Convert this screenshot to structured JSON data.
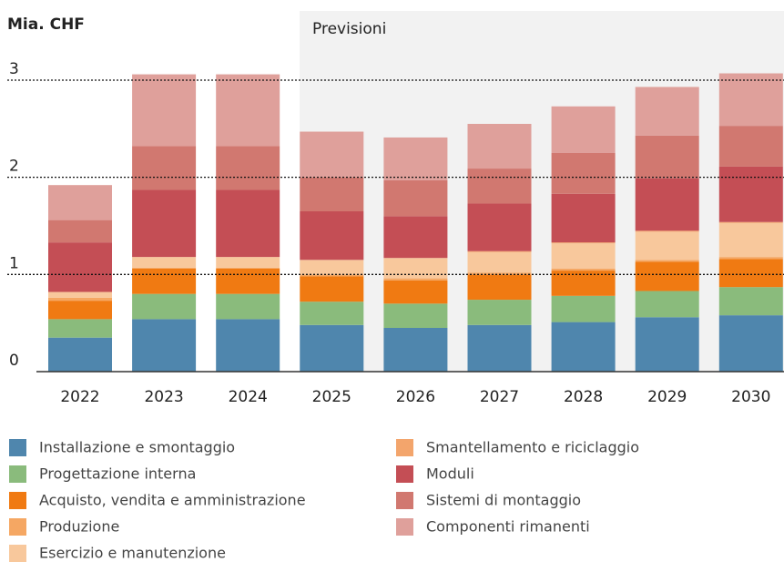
{
  "chart_data": {
    "type": "stacked_bar",
    "title": "Mia. CHF",
    "annotation": "Previsioni",
    "categories": [
      "2022",
      "2023",
      "2024",
      "2025",
      "2026",
      "2027",
      "2028",
      "2029",
      "2030"
    ],
    "series": [
      {
        "name": "Installazione e smontaggio",
        "color": "#4f86ad",
        "values": [
          0.35,
          0.54,
          0.54,
          0.48,
          0.45,
          0.48,
          0.51,
          0.56,
          0.58
        ]
      },
      {
        "name": "Progettazione interna",
        "color": "#8abb7c",
        "values": [
          0.19,
          0.26,
          0.26,
          0.24,
          0.25,
          0.26,
          0.27,
          0.27,
          0.29
        ]
      },
      {
        "name": "Acquisto, vendita e amministrazione",
        "color": "#f07a12",
        "values": [
          0.19,
          0.26,
          0.26,
          0.26,
          0.24,
          0.26,
          0.26,
          0.3,
          0.29
        ]
      },
      {
        "name": "Produzione",
        "color": "#f5a763",
        "values": [
          0.03,
          0.01,
          0.01,
          0.02,
          0.02,
          0.02,
          0.02,
          0.02,
          0.02
        ]
      },
      {
        "name": "Esercizio e manutenzione",
        "color": "#f8c89c",
        "values": [
          0.06,
          0.11,
          0.11,
          0.15,
          0.21,
          0.21,
          0.26,
          0.29,
          0.35
        ]
      },
      {
        "name": "Smantellamento e riciclaggio",
        "color": "#f3a56c",
        "values": [
          0,
          0,
          0,
          0,
          0,
          0.01,
          0.01,
          0.01,
          0.01
        ]
      },
      {
        "name": "Moduli",
        "color": "#c44e55",
        "values": [
          0.51,
          0.69,
          0.69,
          0.5,
          0.43,
          0.49,
          0.5,
          0.54,
          0.57
        ]
      },
      {
        "name": "Sistemi di montaggio",
        "color": "#d17870",
        "values": [
          0.23,
          0.45,
          0.45,
          0.35,
          0.37,
          0.36,
          0.42,
          0.44,
          0.42
        ]
      },
      {
        "name": "Componenti rimanenti",
        "color": "#dfa09b",
        "values": [
          0.36,
          0.74,
          0.74,
          0.47,
          0.44,
          0.46,
          0.48,
          0.5,
          0.54
        ]
      }
    ],
    "ylim": [
      0,
      3.5
    ],
    "yticks": [
      0,
      1,
      2,
      3
    ],
    "grid": true
  }
}
